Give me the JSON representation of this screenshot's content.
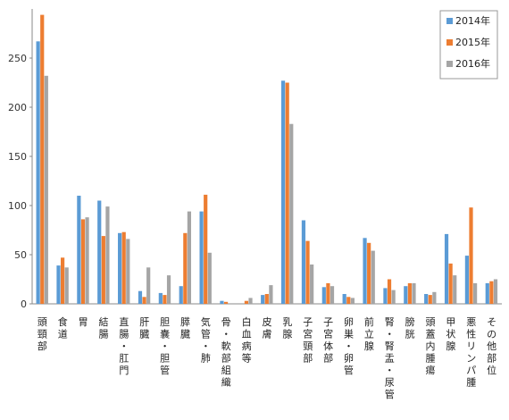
{
  "chart_data": {
    "type": "bar",
    "categories": [
      "頭頸部",
      "食道",
      "胃",
      "結腸",
      "直腸・肛門",
      "肝臓",
      "胆嚢・胆管",
      "膵臓",
      "気管・肺",
      "骨・軟部組織",
      "白血病等",
      "皮膚",
      "乳腺",
      "子宮頸部",
      "子宮体部",
      "卵巣・卵管",
      "前立腺",
      "腎・腎盂・尿管",
      "膀胱",
      "頭蓋内腫瘍",
      "甲状腺",
      "悪性リンパ腫",
      "その他部位"
    ],
    "series": [
      {
        "name": "2014年",
        "color": "#5b9bd5",
        "values": [
          267,
          39,
          110,
          105,
          72,
          13,
          11,
          18,
          94,
          3,
          0,
          9,
          227,
          85,
          17,
          10,
          67,
          16,
          18,
          10,
          71,
          49,
          21
        ]
      },
      {
        "name": "2015年",
        "color": "#ed7d31",
        "values": [
          294,
          47,
          86,
          69,
          73,
          7,
          9,
          72,
          111,
          2,
          3,
          10,
          225,
          64,
          21,
          7,
          62,
          25,
          21,
          9,
          41,
          98,
          23
        ]
      },
      {
        "name": "2016年",
        "color": "#a5a5a5",
        "values": [
          232,
          37,
          88,
          99,
          66,
          37,
          29,
          94,
          52,
          0,
          6,
          19,
          183,
          40,
          18,
          6,
          54,
          14,
          21,
          12,
          29,
          21,
          25
        ]
      }
    ],
    "yticks": [
      "0",
      "50",
      "100",
      "150",
      "200",
      "250"
    ],
    "ylim": [
      0,
      300
    ],
    "legend_position": "top-right",
    "grid": false
  }
}
